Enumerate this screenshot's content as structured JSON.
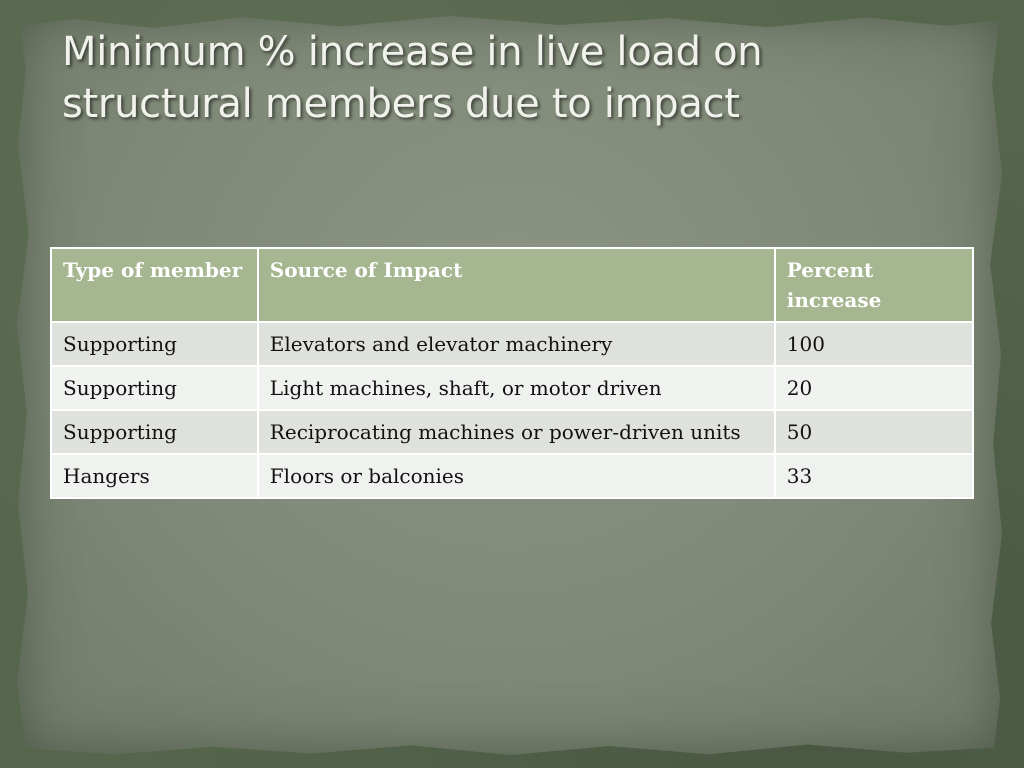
{
  "slide": {
    "title": "Minimum % increase in live load on structural members due to impact"
  },
  "table": {
    "headers": [
      "Type of member",
      "Source of Impact",
      "Percent increase"
    ],
    "rows": [
      [
        "Supporting",
        "Elevators and elevator machinery",
        "100"
      ],
      [
        "Supporting",
        "Light machines, shaft, or motor driven",
        "20"
      ],
      [
        "Supporting",
        "Reciprocating machines or power-driven units",
        "50"
      ],
      [
        "Hangers",
        "Floors or balconies",
        "33"
      ]
    ]
  },
  "colors": {
    "header_bg": "#a5b690",
    "row_odd_bg": "#dfe2dc",
    "row_even_bg": "#eff2ee",
    "slide_bg": "#56664c",
    "parchment_bg": "#7f8977",
    "title_color": "#f1f2ec"
  }
}
